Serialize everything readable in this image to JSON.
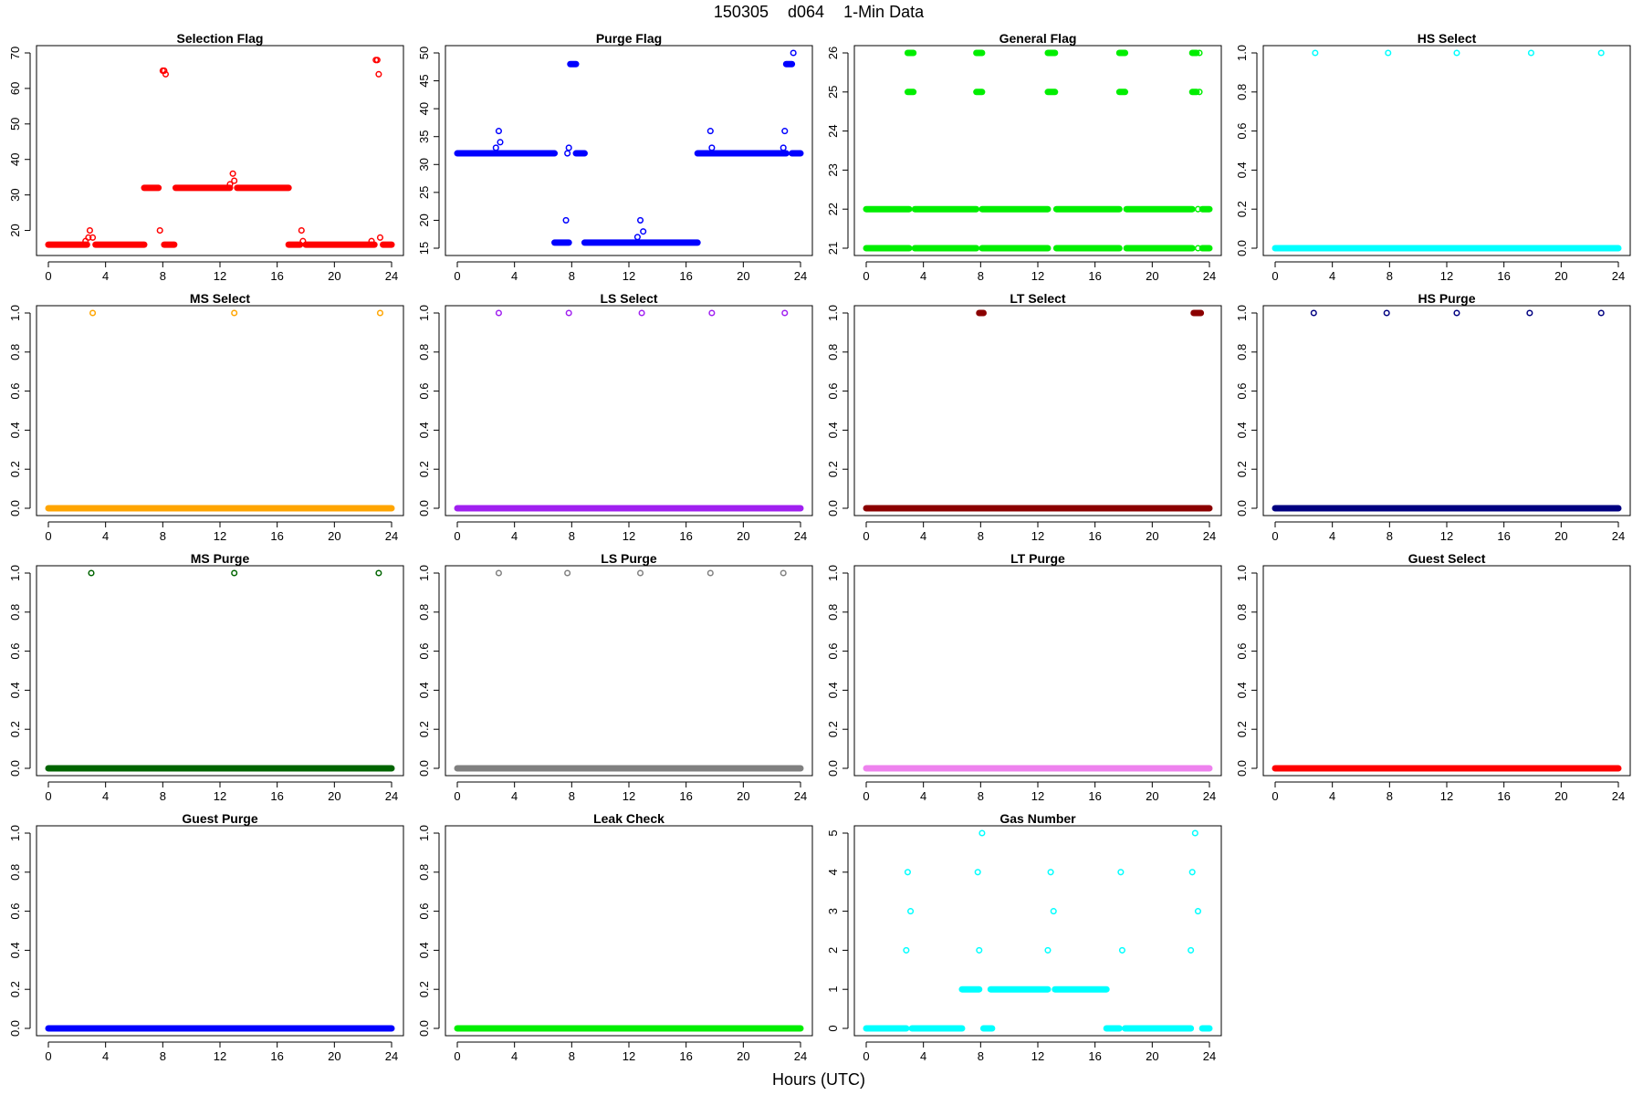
{
  "figure": {
    "title_id": "150305",
    "title_site": "d064",
    "title_res": "1-Min Data",
    "xlabel": "Hours (UTC)"
  },
  "chart_data": [
    {
      "type": "scatter",
      "title": "Selection Flag",
      "color": "#ff0000",
      "xlim": [
        0,
        24
      ],
      "ylim": [
        15,
        70
      ],
      "xticks": [
        0,
        4,
        8,
        12,
        16,
        20,
        24
      ],
      "yticks": [
        20,
        30,
        40,
        50,
        60,
        70
      ],
      "runs": [
        [
          0,
          2.7,
          16
        ],
        [
          3.3,
          6.7,
          16
        ],
        [
          6.7,
          7.7,
          32
        ],
        [
          8.1,
          8.8,
          16
        ],
        [
          8.9,
          12.7,
          32
        ],
        [
          13.2,
          16.8,
          32
        ],
        [
          16.8,
          17.6,
          16
        ],
        [
          18,
          22.8,
          16
        ],
        [
          23.4,
          24,
          16
        ]
      ],
      "points": [
        [
          2.6,
          17
        ],
        [
          2.8,
          18
        ],
        [
          2.9,
          20
        ],
        [
          3.1,
          18
        ],
        [
          7.8,
          20
        ],
        [
          8.0,
          65
        ],
        [
          8.1,
          65
        ],
        [
          8.2,
          64
        ],
        [
          12.7,
          33
        ],
        [
          12.9,
          36
        ],
        [
          13.0,
          34
        ],
        [
          17.7,
          20
        ],
        [
          17.8,
          17
        ],
        [
          22.6,
          17
        ],
        [
          22.9,
          68
        ],
        [
          23.0,
          68
        ],
        [
          23.1,
          64
        ],
        [
          23.2,
          18
        ]
      ]
    },
    {
      "type": "scatter",
      "title": "Purge Flag",
      "color": "#0000ff",
      "xlim": [
        0,
        24
      ],
      "ylim": [
        15,
        50
      ],
      "xticks": [
        0,
        4,
        8,
        12,
        16,
        20,
        24
      ],
      "yticks": [
        15,
        20,
        25,
        30,
        35,
        40,
        45,
        50
      ],
      "runs": [
        [
          0,
          6.8,
          32
        ],
        [
          6.8,
          7.8,
          16
        ],
        [
          7.9,
          8.3,
          48
        ],
        [
          8.3,
          8.9,
          32
        ],
        [
          8.9,
          16.8,
          16
        ],
        [
          16.8,
          23.0,
          32
        ],
        [
          23.0,
          23.4,
          48
        ],
        [
          23.4,
          24,
          32
        ]
      ],
      "points": [
        [
          2.7,
          33
        ],
        [
          2.9,
          36
        ],
        [
          3.0,
          34
        ],
        [
          7.6,
          20
        ],
        [
          7.7,
          32
        ],
        [
          7.8,
          33
        ],
        [
          12.6,
          17
        ],
        [
          12.8,
          20
        ],
        [
          13.0,
          18
        ],
        [
          17.7,
          36
        ],
        [
          17.8,
          33
        ],
        [
          22.8,
          33
        ],
        [
          22.9,
          36
        ],
        [
          23.5,
          50
        ]
      ]
    },
    {
      "type": "scatter",
      "title": "General Flag",
      "color": "#00ee00",
      "xlim": [
        0,
        24
      ],
      "ylim": [
        21,
        26
      ],
      "xticks": [
        0,
        4,
        8,
        12,
        16,
        20,
        24
      ],
      "yticks": [
        21,
        22,
        23,
        24,
        25,
        26
      ],
      "runs": [
        [
          0,
          3.0,
          22
        ],
        [
          0,
          3.0,
          21
        ],
        [
          3.4,
          7.7,
          22
        ],
        [
          3.4,
          7.7,
          21
        ],
        [
          8.1,
          12.7,
          22
        ],
        [
          8.1,
          12.7,
          21
        ],
        [
          13.3,
          17.7,
          22
        ],
        [
          13.3,
          17.7,
          21
        ],
        [
          18.2,
          22.8,
          22
        ],
        [
          18.2,
          22.8,
          21
        ],
        [
          23.5,
          24,
          22
        ],
        [
          23.5,
          24,
          21
        ],
        [
          2.9,
          3.3,
          26
        ],
        [
          2.9,
          3.3,
          25
        ],
        [
          7.7,
          8.1,
          26
        ],
        [
          7.7,
          8.1,
          25
        ],
        [
          12.7,
          13.2,
          26
        ],
        [
          12.7,
          13.2,
          25
        ],
        [
          17.7,
          18.1,
          26
        ],
        [
          17.7,
          18.1,
          25
        ],
        [
          22.8,
          23.1,
          26
        ],
        [
          22.8,
          23.1,
          25
        ]
      ],
      "points": [
        [
          23.3,
          26
        ],
        [
          23.3,
          25
        ],
        [
          23.2,
          22
        ],
        [
          23.2,
          21
        ]
      ]
    },
    {
      "type": "scatter",
      "title": "HS Select",
      "color": "#00ffff",
      "xlim": [
        0,
        24
      ],
      "ylim": [
        0,
        1
      ],
      "xticks": [
        0,
        4,
        8,
        12,
        16,
        20,
        24
      ],
      "yticks": [
        0.0,
        0.2,
        0.4,
        0.6,
        0.8,
        1.0
      ],
      "runs": [
        [
          0,
          24,
          0
        ]
      ],
      "points": [
        [
          2.8,
          1
        ],
        [
          7.9,
          1
        ],
        [
          12.7,
          1
        ],
        [
          17.9,
          1
        ],
        [
          22.8,
          1
        ]
      ]
    },
    {
      "type": "scatter",
      "title": "MS Select",
      "color": "#ffa500",
      "xlim": [
        0,
        24
      ],
      "ylim": [
        0,
        1
      ],
      "xticks": [
        0,
        4,
        8,
        12,
        16,
        20,
        24
      ],
      "yticks": [
        0.0,
        0.2,
        0.4,
        0.6,
        0.8,
        1.0
      ],
      "runs": [
        [
          0,
          24,
          0
        ]
      ],
      "points": [
        [
          3.1,
          1
        ],
        [
          13.0,
          1
        ],
        [
          23.2,
          1
        ]
      ]
    },
    {
      "type": "scatter",
      "title": "LS Select",
      "color": "#a020f0",
      "xlim": [
        0,
        24
      ],
      "ylim": [
        0,
        1
      ],
      "xticks": [
        0,
        4,
        8,
        12,
        16,
        20,
        24
      ],
      "yticks": [
        0.0,
        0.2,
        0.4,
        0.6,
        0.8,
        1.0
      ],
      "runs": [
        [
          0,
          24,
          0
        ]
      ],
      "points": [
        [
          2.9,
          1
        ],
        [
          7.8,
          1
        ],
        [
          12.9,
          1
        ],
        [
          17.8,
          1
        ],
        [
          22.9,
          1
        ]
      ]
    },
    {
      "type": "scatter",
      "title": "LT Select",
      "color": "#8b0000",
      "xlim": [
        0,
        24
      ],
      "ylim": [
        0,
        1
      ],
      "xticks": [
        0,
        4,
        8,
        12,
        16,
        20,
        24
      ],
      "yticks": [
        0.0,
        0.2,
        0.4,
        0.6,
        0.8,
        1.0
      ],
      "runs": [
        [
          0,
          24,
          0
        ],
        [
          7.9,
          8.2,
          1
        ],
        [
          22.9,
          23.4,
          1
        ]
      ],
      "points": []
    },
    {
      "type": "scatter",
      "title": "HS Purge",
      "color": "#000080",
      "xlim": [
        0,
        24
      ],
      "ylim": [
        0,
        1
      ],
      "xticks": [
        0,
        4,
        8,
        12,
        16,
        20,
        24
      ],
      "yticks": [
        0.0,
        0.2,
        0.4,
        0.6,
        0.8,
        1.0
      ],
      "runs": [
        [
          0,
          24,
          0
        ]
      ],
      "points": [
        [
          2.7,
          1
        ],
        [
          7.8,
          1
        ],
        [
          12.7,
          1
        ],
        [
          17.8,
          1
        ],
        [
          22.8,
          1
        ]
      ]
    },
    {
      "type": "scatter",
      "title": "MS Purge",
      "color": "#006400",
      "xlim": [
        0,
        24
      ],
      "ylim": [
        0,
        1
      ],
      "xticks": [
        0,
        4,
        8,
        12,
        16,
        20,
        24
      ],
      "yticks": [
        0.0,
        0.2,
        0.4,
        0.6,
        0.8,
        1.0
      ],
      "runs": [
        [
          0,
          24,
          0
        ]
      ],
      "points": [
        [
          3.0,
          1
        ],
        [
          13.0,
          1
        ],
        [
          23.1,
          1
        ]
      ]
    },
    {
      "type": "scatter",
      "title": "LS Purge",
      "color": "#808080",
      "xlim": [
        0,
        24
      ],
      "ylim": [
        0,
        1
      ],
      "xticks": [
        0,
        4,
        8,
        12,
        16,
        20,
        24
      ],
      "yticks": [
        0.0,
        0.2,
        0.4,
        0.6,
        0.8,
        1.0
      ],
      "runs": [
        [
          0,
          24,
          0
        ]
      ],
      "points": [
        [
          2.9,
          1
        ],
        [
          7.7,
          1
        ],
        [
          12.8,
          1
        ],
        [
          17.7,
          1
        ],
        [
          22.8,
          1
        ]
      ]
    },
    {
      "type": "scatter",
      "title": "LT Purge",
      "color": "#ee82ee",
      "xlim": [
        0,
        24
      ],
      "ylim": [
        0,
        1
      ],
      "xticks": [
        0,
        4,
        8,
        12,
        16,
        20,
        24
      ],
      "yticks": [
        0.0,
        0.2,
        0.4,
        0.6,
        0.8,
        1.0
      ],
      "runs": [
        [
          0,
          24,
          0
        ]
      ],
      "points": []
    },
    {
      "type": "scatter",
      "title": "Guest Select",
      "color": "#ff0000",
      "xlim": [
        0,
        24
      ],
      "ylim": [
        0,
        1
      ],
      "xticks": [
        0,
        4,
        8,
        12,
        16,
        20,
        24
      ],
      "yticks": [
        0.0,
        0.2,
        0.4,
        0.6,
        0.8,
        1.0
      ],
      "runs": [
        [
          0,
          24,
          0
        ]
      ],
      "points": []
    },
    {
      "type": "scatter",
      "title": "Guest Purge",
      "color": "#0000ff",
      "xlim": [
        0,
        24
      ],
      "ylim": [
        0,
        1
      ],
      "xticks": [
        0,
        4,
        8,
        12,
        16,
        20,
        24
      ],
      "yticks": [
        0.0,
        0.2,
        0.4,
        0.6,
        0.8,
        1.0
      ],
      "runs": [
        [
          0,
          24,
          0
        ]
      ],
      "points": []
    },
    {
      "type": "scatter",
      "title": "Leak Check",
      "color": "#00ee00",
      "xlim": [
        0,
        24
      ],
      "ylim": [
        0,
        1
      ],
      "xticks": [
        0,
        4,
        8,
        12,
        16,
        20,
        24
      ],
      "yticks": [
        0.0,
        0.2,
        0.4,
        0.6,
        0.8,
        1.0
      ],
      "runs": [
        [
          0,
          24,
          0
        ]
      ],
      "points": []
    },
    {
      "type": "scatter",
      "title": "Gas Number",
      "color": "#00ffff",
      "xlim": [
        0,
        24
      ],
      "ylim": [
        0,
        5
      ],
      "xticks": [
        0,
        4,
        8,
        12,
        16,
        20,
        24
      ],
      "yticks": [
        0,
        1,
        2,
        3,
        4,
        5
      ],
      "runs": [
        [
          0,
          2.8,
          0
        ],
        [
          3.2,
          6.7,
          0
        ],
        [
          6.7,
          7.9,
          1
        ],
        [
          8.2,
          8.8,
          0
        ],
        [
          8.7,
          12.7,
          1
        ],
        [
          13.2,
          16.8,
          1
        ],
        [
          16.8,
          17.7,
          0
        ],
        [
          18.1,
          22.7,
          0
        ],
        [
          23.5,
          24,
          0
        ]
      ],
      "points": [
        [
          2.8,
          2
        ],
        [
          2.9,
          4
        ],
        [
          3.1,
          3
        ],
        [
          7.8,
          4
        ],
        [
          7.9,
          2
        ],
        [
          8.1,
          5
        ],
        [
          12.7,
          2
        ],
        [
          12.9,
          4
        ],
        [
          13.1,
          3
        ],
        [
          17.8,
          4
        ],
        [
          17.9,
          2
        ],
        [
          22.7,
          2
        ],
        [
          22.8,
          4
        ],
        [
          23.0,
          5
        ],
        [
          23.2,
          3
        ]
      ]
    }
  ]
}
